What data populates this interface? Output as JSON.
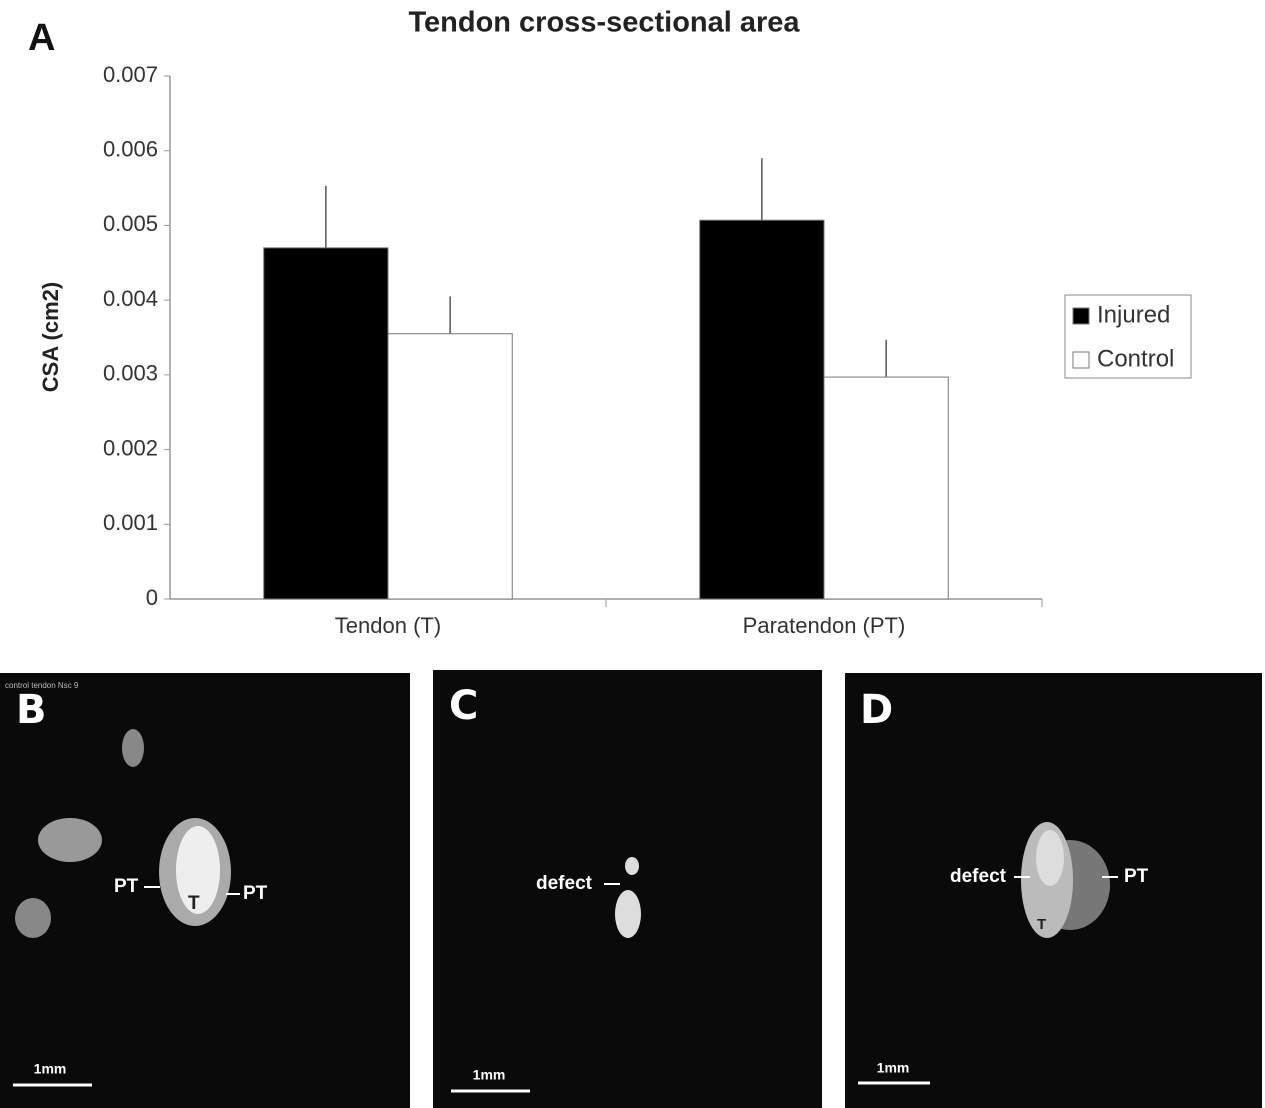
{
  "chart_data": {
    "type": "bar",
    "panel_label": "A",
    "title": "Tendon cross-sectional area",
    "y_label": "CSA (cm2)",
    "categories": [
      "Tendon (T)",
      "Paratendon (PT)"
    ],
    "series": [
      {
        "name": "Injured",
        "color": "#000000",
        "values": [
          0.0047,
          0.00507
        ],
        "errors": [
          0.00083,
          0.00083
        ]
      },
      {
        "name": "Control",
        "color": "#ffffff",
        "values": [
          0.00355,
          0.00297
        ],
        "errors": [
          0.0005,
          0.0005
        ]
      }
    ],
    "ylim": [
      0,
      0.007
    ],
    "yticks": [
      0,
      0.001,
      0.002,
      0.003,
      0.004,
      0.005,
      0.006,
      0.007
    ],
    "grid": false,
    "legend": "right"
  },
  "panels": [
    {
      "label": "B",
      "caption": "control tendon Nsc 9",
      "annotations": [
        "PT",
        "T",
        "PT"
      ],
      "scale": "1mm"
    },
    {
      "label": "C",
      "annotations": [
        "defect"
      ],
      "scale": "1mm"
    },
    {
      "label": "D",
      "annotations": [
        "defect",
        "PT",
        "T"
      ],
      "scale": "1mm"
    }
  ]
}
